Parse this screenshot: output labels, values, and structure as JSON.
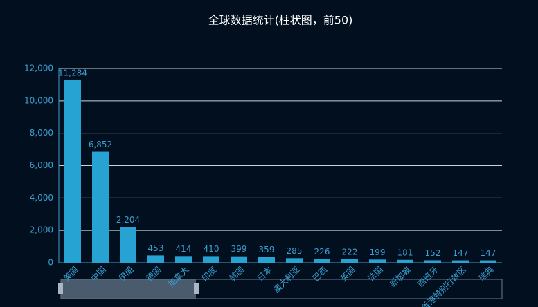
{
  "chart_data": {
    "type": "bar",
    "title": "全球数据统计(柱状图，前50)",
    "categories": [
      "美国",
      "中国",
      "伊朗",
      "德国",
      "加拿大",
      "印度",
      "韩国",
      "日本",
      "澳大利亚",
      "巴西",
      "英国",
      "法国",
      "新加坡",
      "西班牙",
      "香港特别行政区",
      "瑞典"
    ],
    "values": [
      11284,
      6852,
      2204,
      453,
      414,
      410,
      399,
      359,
      285,
      226,
      222,
      199,
      181,
      152,
      147,
      147
    ],
    "value_labels": [
      "11,284",
      "6,852",
      "2,204",
      "453",
      "414",
      "410",
      "399",
      "359",
      "285",
      "226",
      "222",
      "199",
      "181",
      "152",
      "147",
      "147"
    ],
    "color": "#27a3d3",
    "ylim": [
      0,
      12000
    ],
    "yticks": [
      0,
      {
        "value": 2000,
        "label": "2,000"
      },
      {
        "value": 4000,
        "label": "4,000"
      },
      {
        "value": 6000,
        "label": "6,000"
      },
      {
        "value": 8000,
        "label": "8,000"
      },
      {
        "value": 10000,
        "label": "10,000"
      },
      {
        "value": 12000,
        "label": "12,000"
      }
    ],
    "grid": true
  }
}
